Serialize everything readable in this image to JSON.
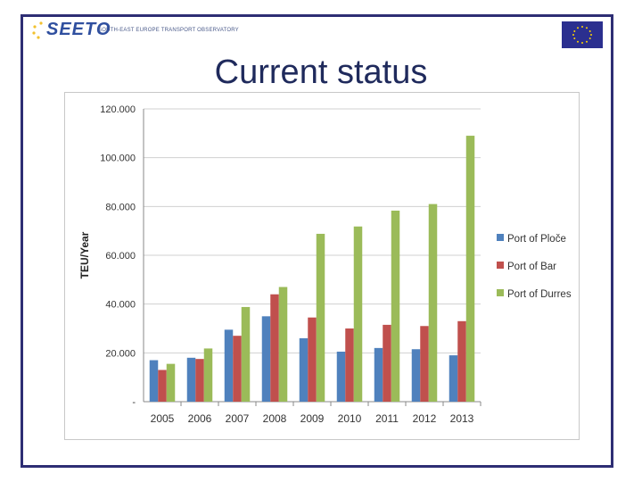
{
  "header": {
    "logo_text": "SEETO",
    "logo_subtitle": "SOUTH-EAST EUROPE TRANSPORT OBSERVATORY",
    "title": "Current status"
  },
  "chart_data": {
    "type": "bar",
    "title": "",
    "xlabel": "",
    "ylabel": "TEU/Year",
    "ylim": [
      0,
      120000
    ],
    "yticks": [
      0,
      20000,
      40000,
      60000,
      80000,
      100000,
      120000
    ],
    "ytick_labels": [
      "-",
      "20.000",
      "40.000",
      "60.000",
      "80.000",
      "100.000",
      "120.000"
    ],
    "grid": true,
    "legend_position": "right",
    "categories": [
      "2005",
      "2006",
      "2007",
      "2008",
      "2009",
      "2010",
      "2011",
      "2012",
      "2013"
    ],
    "series": [
      {
        "name": "Port of Ploče",
        "color": "#4f81bd",
        "values": [
          17000,
          18000,
          29500,
          35000,
          26000,
          20500,
          22000,
          21500,
          19000
        ]
      },
      {
        "name": "Port of Bar",
        "color": "#c0504d",
        "values": [
          13000,
          17500,
          27000,
          44000,
          34500,
          30000,
          31500,
          31000,
          33000
        ]
      },
      {
        "name": "Port of Durres",
        "color": "#9bbb59",
        "values": [
          15500,
          21800,
          38800,
          47000,
          68800,
          71800,
          78300,
          81000,
          109000
        ]
      }
    ]
  }
}
